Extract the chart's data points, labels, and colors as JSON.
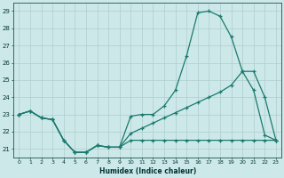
{
  "x_values": [
    0,
    1,
    2,
    3,
    4,
    5,
    6,
    7,
    8,
    9,
    10,
    11,
    12,
    13,
    14,
    15,
    16,
    17,
    18,
    19,
    20,
    21,
    22,
    23
  ],
  "line_main": [
    23.0,
    23.2,
    22.8,
    22.7,
    21.5,
    20.8,
    20.8,
    21.2,
    21.1,
    21.1,
    22.9,
    23.0,
    23.0,
    23.5,
    24.4,
    26.4,
    28.9,
    29.0,
    28.7,
    27.5,
    25.5,
    24.4,
    21.8,
    21.5
  ],
  "line_trend": [
    23.0,
    23.2,
    22.8,
    22.7,
    21.5,
    20.8,
    20.8,
    21.2,
    21.1,
    21.1,
    21.9,
    22.2,
    22.5,
    22.8,
    23.1,
    23.4,
    23.7,
    24.0,
    24.3,
    24.7,
    25.5,
    25.5,
    24.0,
    21.5
  ],
  "line_flat": [
    23.0,
    23.2,
    22.8,
    22.7,
    21.5,
    20.8,
    20.8,
    21.2,
    21.1,
    21.1,
    21.5,
    21.5,
    21.5,
    21.5,
    21.5,
    21.5,
    21.5,
    21.5,
    21.5,
    21.5,
    21.5,
    21.5,
    21.5,
    21.5
  ],
  "line_color": "#1a7a6e",
  "bg_color": "#cde8e8",
  "grid_color": "#aecece",
  "xlabel": "Humidex (Indice chaleur)",
  "xlim": [
    -0.5,
    23.5
  ],
  "ylim": [
    20.5,
    29.5
  ],
  "yticks": [
    21,
    22,
    23,
    24,
    25,
    26,
    27,
    28,
    29
  ],
  "xticks": [
    0,
    1,
    2,
    3,
    4,
    5,
    6,
    7,
    8,
    9,
    10,
    11,
    12,
    13,
    14,
    15,
    16,
    17,
    18,
    19,
    20,
    21,
    22,
    23
  ]
}
